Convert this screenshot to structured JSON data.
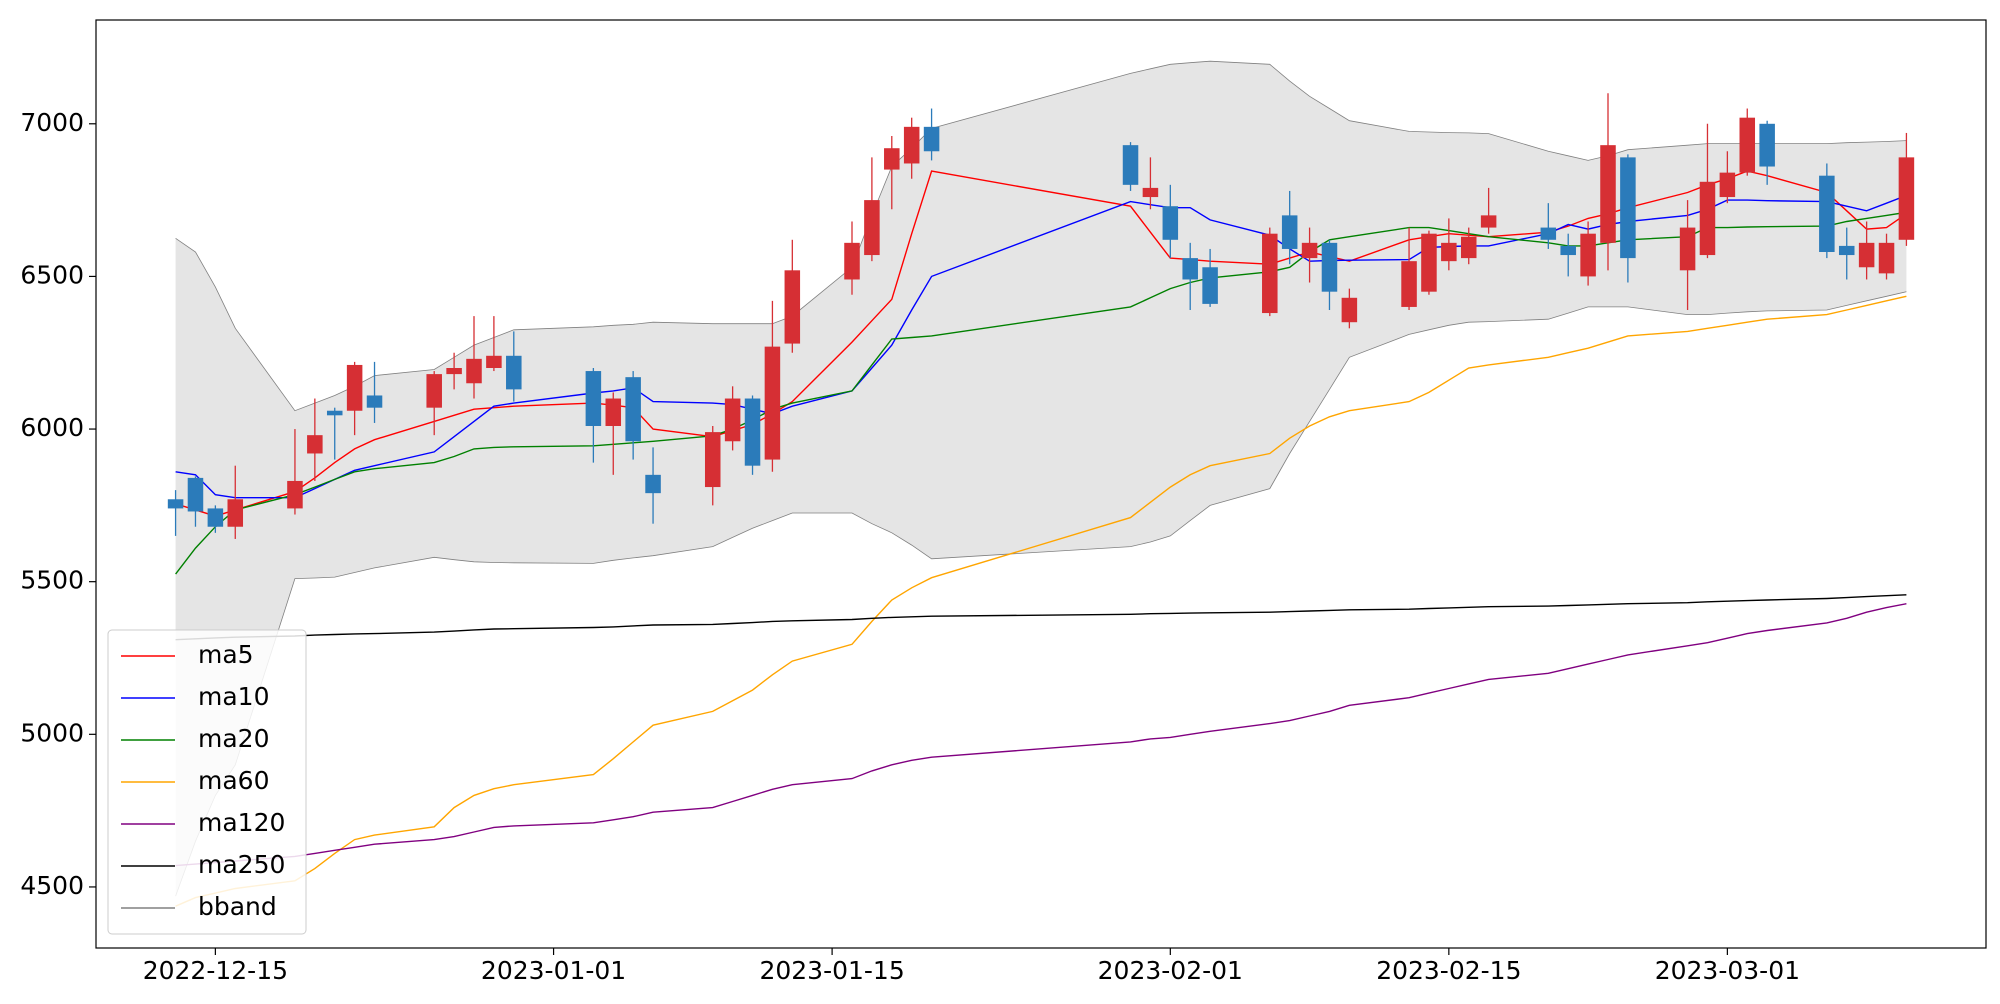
{
  "chart_data": {
    "type": "candlestick",
    "x": [
      "2022-12-13",
      "2022-12-14",
      "2022-12-15",
      "2022-12-16",
      "2022-12-19",
      "2022-12-20",
      "2022-12-21",
      "2022-12-22",
      "2022-12-23",
      "2022-12-26",
      "2022-12-27",
      "2022-12-28",
      "2022-12-29",
      "2022-12-30",
      "2023-01-03",
      "2023-01-04",
      "2023-01-05",
      "2023-01-06",
      "2023-01-09",
      "2023-01-10",
      "2023-01-11",
      "2023-01-12",
      "2023-01-13",
      "2023-01-16",
      "2023-01-17",
      "2023-01-18",
      "2023-01-19",
      "2023-01-20",
      "2023-01-30",
      "2023-01-31",
      "2023-02-01",
      "2023-02-02",
      "2023-02-03",
      "2023-02-06",
      "2023-02-07",
      "2023-02-08",
      "2023-02-09",
      "2023-02-10",
      "2023-02-13",
      "2023-02-14",
      "2023-02-15",
      "2023-02-16",
      "2023-02-17",
      "2023-02-20",
      "2023-02-21",
      "2023-02-22",
      "2023-02-23",
      "2023-02-24",
      "2023-02-27",
      "2023-02-28",
      "2023-03-01",
      "2023-03-02",
      "2023-03-03",
      "2023-03-06",
      "2023-03-07",
      "2023-03-08",
      "2023-03-09",
      "2023-03-10"
    ],
    "open": [
      5770,
      5840,
      5740,
      5680,
      5740,
      5920,
      6060,
      6060,
      6110,
      6070,
      6180,
      6150,
      6200,
      6240,
      6190,
      6010,
      6170,
      5850,
      5810,
      5960,
      6100,
      5900,
      6280,
      6490,
      6570,
      6850,
      6870,
      6990,
      6930,
      6760,
      6730,
      6560,
      6530,
      6380,
      6700,
      6560,
      6610,
      6350,
      6400,
      6450,
      6550,
      6560,
      6660,
      6660,
      6600,
      6500,
      6610,
      6890,
      6520,
      6570,
      6760,
      6840,
      7000,
      6830,
      6600,
      6530,
      6510,
      6620
    ],
    "high": [
      5800,
      5845,
      5750,
      5880,
      6000,
      6100,
      6070,
      6220,
      6220,
      6190,
      6250,
      6370,
      6370,
      6320,
      6200,
      6120,
      6190,
      5940,
      6010,
      6140,
      6110,
      6420,
      6620,
      6680,
      6890,
      6960,
      7020,
      7050,
      6940,
      6890,
      6800,
      6610,
      6590,
      6660,
      6780,
      6660,
      6620,
      6460,
      6660,
      6650,
      6690,
      6660,
      6790,
      6740,
      6640,
      6680,
      7100,
      6900,
      6750,
      7000,
      6910,
      7050,
      7010,
      6870,
      6660,
      6680,
      6640,
      6970
    ],
    "low": [
      5650,
      5680,
      5660,
      5640,
      5720,
      5830,
      5900,
      5980,
      6020,
      5980,
      6130,
      6100,
      6190,
      6090,
      5890,
      5850,
      5900,
      5690,
      5750,
      5930,
      5850,
      5860,
      6250,
      6440,
      6550,
      6720,
      6820,
      6880,
      6780,
      6720,
      6560,
      6390,
      6400,
      6370,
      6540,
      6480,
      6390,
      6330,
      6390,
      6440,
      6520,
      6540,
      6640,
      6590,
      6500,
      6470,
      6520,
      6480,
      6390,
      6560,
      6740,
      6830,
      6800,
      6560,
      6490,
      6490,
      6490,
      6600
    ],
    "close": [
      5740,
      5730,
      5680,
      5770,
      5830,
      5980,
      6045,
      6210,
      6070,
      6180,
      6200,
      6230,
      6240,
      6130,
      6010,
      6100,
      5960,
      5790,
      5990,
      6100,
      5880,
      6270,
      6520,
      6610,
      6750,
      6920,
      6990,
      6910,
      6800,
      6790,
      6620,
      6490,
      6410,
      6640,
      6590,
      6610,
      6450,
      6430,
      6550,
      6640,
      6610,
      6630,
      6700,
      6620,
      6570,
      6640,
      6930,
      6560,
      6660,
      6810,
      6840,
      7020,
      6860,
      6580,
      6570,
      6610,
      6610,
      6890
    ],
    "up_color": "#d62f34",
    "down_color": "#2b7bba",
    "series": [
      {
        "name": "ma5",
        "color": "red",
        "values": [
          5755,
          5735,
          5715,
          5735,
          5795,
          5840,
          5890,
          5935,
          5965,
          6025,
          6045,
          6065,
          6070,
          6075,
          6085,
          6078,
          6070,
          6000,
          5975,
          5995,
          6015,
          6050,
          6090,
          6285,
          6355,
          6425,
          6640,
          6845,
          6730,
          6645,
          6560,
          6555,
          6550,
          6540,
          6560,
          6580,
          6565,
          6550,
          6620,
          6630,
          6640,
          6635,
          6630,
          6645,
          6665,
          6690,
          6705,
          6725,
          6775,
          6800,
          6820,
          6845,
          6830,
          6775,
          6715,
          6655,
          6660,
          6705
        ]
      },
      {
        "name": "ma10",
        "color": "blue",
        "values": [
          5860,
          5850,
          5785,
          5775,
          5775,
          5805,
          5835,
          5865,
          5880,
          5925,
          5975,
          6025,
          6075,
          6085,
          6118,
          6125,
          6135,
          6090,
          6085,
          6080,
          6065,
          6050,
          6075,
          6125,
          6200,
          6275,
          6390,
          6500,
          6745,
          6735,
          6725,
          6725,
          6685,
          6635,
          6590,
          6550,
          6552,
          6553,
          6555,
          6595,
          6598,
          6600,
          6600,
          6640,
          6670,
          6655,
          6670,
          6680,
          6700,
          6720,
          6750,
          6750,
          6748,
          6745,
          6730,
          6715,
          6740,
          6765
        ]
      },
      {
        "name": "ma20",
        "color": "green",
        "values": [
          5525,
          5610,
          5680,
          5735,
          5785,
          5810,
          5835,
          5860,
          5870,
          5890,
          5910,
          5935,
          5940,
          5942,
          5945,
          5950,
          5955,
          5960,
          5978,
          6000,
          6030,
          6065,
          6085,
          6125,
          6210,
          6295,
          6300,
          6305,
          6400,
          6430,
          6460,
          6480,
          6495,
          6515,
          6530,
          6580,
          6620,
          6630,
          6660,
          6660,
          6650,
          6640,
          6630,
          6610,
          6600,
          6600,
          6610,
          6620,
          6630,
          6660,
          6660,
          6662,
          6663,
          6665,
          6680,
          6690,
          6700,
          6710
        ]
      },
      {
        "name": "ma60",
        "color": "orange",
        "values": [
          4437,
          4465,
          4480,
          4495,
          4520,
          4560,
          4610,
          4655,
          4670,
          4697,
          4760,
          4800,
          4822,
          4835,
          4868,
          4920,
          4975,
          5030,
          5075,
          5110,
          5145,
          5195,
          5240,
          5295,
          5370,
          5440,
          5480,
          5513,
          5710,
          5760,
          5810,
          5850,
          5880,
          5920,
          5970,
          6010,
          6040,
          6060,
          6090,
          6120,
          6160,
          6200,
          6210,
          6235,
          6250,
          6265,
          6285,
          6305,
          6320,
          6330,
          6340,
          6350,
          6360,
          6375,
          6390,
          6405,
          6420,
          6435
        ]
      },
      {
        "name": "ma120",
        "color": "purple",
        "values": [
          4570,
          4575,
          4580,
          4585,
          4600,
          4610,
          4620,
          4630,
          4640,
          4655,
          4665,
          4680,
          4695,
          4700,
          4710,
          4720,
          4730,
          4745,
          4760,
          4780,
          4800,
          4820,
          4835,
          4855,
          4880,
          4900,
          4915,
          4925,
          4975,
          4985,
          4990,
          5000,
          5010,
          5035,
          5045,
          5060,
          5075,
          5095,
          5120,
          5135,
          5150,
          5165,
          5180,
          5200,
          5215,
          5230,
          5245,
          5260,
          5290,
          5300,
          5315,
          5330,
          5340,
          5365,
          5380,
          5400,
          5415,
          5428
        ]
      },
      {
        "name": "ma250",
        "color": "black",
        "values": [
          5310,
          5313,
          5316,
          5318,
          5322,
          5325,
          5327,
          5329,
          5330,
          5335,
          5338,
          5342,
          5345,
          5346,
          5350,
          5352,
          5355,
          5358,
          5360,
          5363,
          5366,
          5370,
          5372,
          5376,
          5380,
          5383,
          5385,
          5387,
          5393,
          5395,
          5396,
          5397,
          5398,
          5400,
          5402,
          5404,
          5406,
          5408,
          5410,
          5412,
          5414,
          5416,
          5418,
          5420,
          5422,
          5424,
          5426,
          5428,
          5431,
          5434,
          5436,
          5438,
          5440,
          5445,
          5448,
          5451,
          5454,
          5457
        ]
      }
    ],
    "bband": {
      "name": "bband",
      "color": "grey",
      "fill": "#e5e5e5",
      "upper": [
        6625,
        6580,
        6465,
        6330,
        6060,
        6085,
        6110,
        6140,
        6175,
        6195,
        6235,
        6275,
        6300,
        6325,
        6335,
        6340,
        6343,
        6350,
        6345,
        6345,
        6345,
        6345,
        6370,
        6530,
        6700,
        6860,
        6920,
        6985,
        7165,
        7180,
        7195,
        7200,
        7205,
        7195,
        7140,
        7090,
        7050,
        7010,
        6975,
        6973,
        6971,
        6970,
        6968,
        6910,
        6895,
        6880,
        6895,
        6915,
        6930,
        6935,
        6935,
        6935,
        6935,
        6935,
        6938,
        6940,
        6942,
        6945
      ],
      "lower": [
        4470,
        4650,
        4800,
        4900,
        5510,
        5512,
        5515,
        5530,
        5545,
        5580,
        5572,
        5565,
        5563,
        5562,
        5560,
        5570,
        5578,
        5585,
        5615,
        5645,
        5675,
        5700,
        5725,
        5725,
        5690,
        5660,
        5620,
        5575,
        5615,
        5630,
        5650,
        5700,
        5750,
        5805,
        5920,
        6025,
        6130,
        6235,
        6310,
        6325,
        6340,
        6350,
        6352,
        6360,
        6380,
        6400,
        6400,
        6400,
        6375,
        6375,
        6380,
        6384,
        6387,
        6390,
        6405,
        6420,
        6435,
        6450
      ]
    },
    "xlim": [
      "2022-12-09",
      "2023-03-14"
    ],
    "xticks": [
      "2022-12-15",
      "2023-01-01",
      "2023-01-15",
      "2023-02-01",
      "2023-02-15",
      "2023-03-01"
    ],
    "ylim": [
      4300,
      7340
    ],
    "yticks": [
      4500,
      5000,
      5500,
      6000,
      6500,
      7000
    ],
    "legend": "lower left",
    "grid": false
  }
}
